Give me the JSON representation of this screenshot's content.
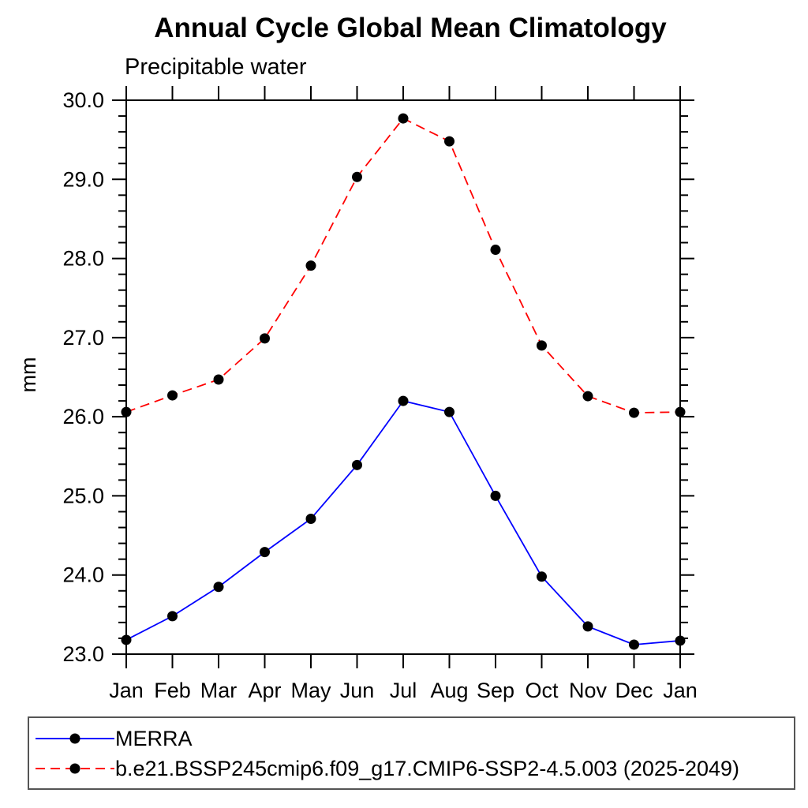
{
  "chart_data": {
    "type": "line",
    "title": "Annual Cycle Global Mean Climatology",
    "subtitle": "Precipitable water",
    "ylabel": "mm",
    "x_categories": [
      "Jan",
      "Feb",
      "Mar",
      "Apr",
      "May",
      "Jun",
      "Jul",
      "Aug",
      "Sep",
      "Oct",
      "Nov",
      "Dec",
      "Jan"
    ],
    "ylim": [
      23.0,
      30.0
    ],
    "y_major_step": 1.0,
    "y_minor_step": 0.2,
    "y_tick_labels": [
      "23.0",
      "24.0",
      "25.0",
      "26.0",
      "27.0",
      "28.0",
      "29.0",
      "30.0"
    ],
    "grid": false,
    "legend_position": "bottom-left-box",
    "axis_color": "#000000",
    "marker": "filled-circle",
    "marker_color": "#000000",
    "series": [
      {
        "name": "MERRA",
        "color": "#0000ff",
        "line_style": "solid",
        "values": [
          23.18,
          23.48,
          23.85,
          24.29,
          24.71,
          25.39,
          26.2,
          26.06,
          25.0,
          23.98,
          23.35,
          23.12,
          23.17
        ]
      },
      {
        "name": "b.e21.BSSP245cmip6.f09_g17.CMIP6-SSP2-4.5.003 (2025-2049)",
        "color": "#ff0000",
        "line_style": "dashed",
        "values": [
          26.06,
          26.27,
          26.47,
          26.99,
          27.91,
          29.03,
          29.77,
          29.48,
          28.11,
          26.9,
          26.26,
          26.05,
          26.06
        ]
      }
    ]
  }
}
